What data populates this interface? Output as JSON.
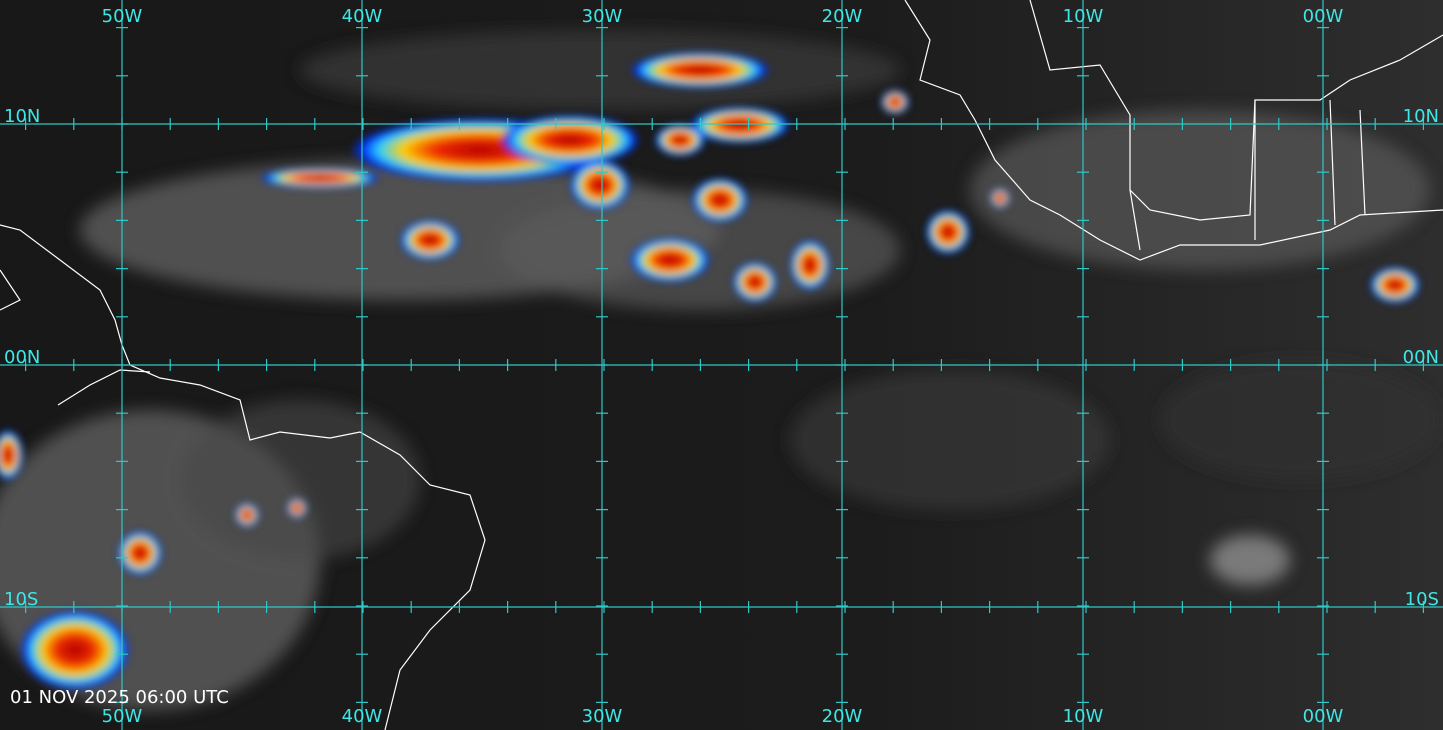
{
  "map": {
    "longitude_labels": {
      "top": [
        "50W",
        "40W",
        "30W",
        "20W",
        "10W",
        "00W"
      ],
      "bottom": [
        "50W",
        "40W",
        "30W",
        "20W",
        "10W",
        "00W"
      ]
    },
    "latitude_labels": {
      "left": [
        "10N",
        "00N",
        "10S"
      ],
      "right": [
        "10N",
        "00N",
        "10S"
      ]
    },
    "timestamp": "01 NOV 2025 06:00 UTC"
  }
}
